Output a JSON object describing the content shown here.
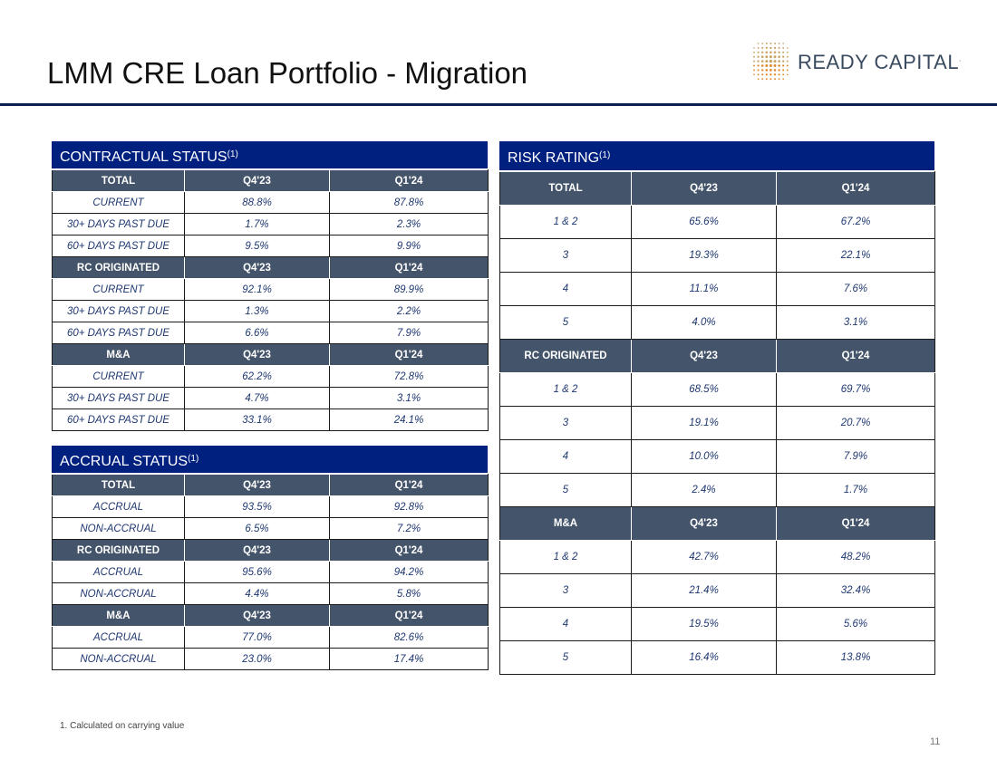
{
  "title": "LMM CRE Loan Portfolio - Migration",
  "logo": {
    "text": "READY CAPITAL",
    "mark": "."
  },
  "cols": [
    "Q4'23",
    "Q1'24"
  ],
  "contractual": {
    "title": "CONTRACTUAL STATUS",
    "sup": "(1)",
    "groups": [
      {
        "label": "TOTAL",
        "rows": [
          {
            "label": "CURRENT",
            "q4": "88.8%",
            "q1": "87.8%"
          },
          {
            "label": "30+ DAYS PAST DUE",
            "q4": "1.7%",
            "q1": "2.3%"
          },
          {
            "label": "60+ DAYS PAST DUE",
            "q4": "9.5%",
            "q1": "9.9%"
          }
        ]
      },
      {
        "label": "RC ORIGINATED",
        "rows": [
          {
            "label": "CURRENT",
            "q4": "92.1%",
            "q1": "89.9%"
          },
          {
            "label": "30+ DAYS PAST DUE",
            "q4": "1.3%",
            "q1": "2.2%"
          },
          {
            "label": "60+ DAYS PAST DUE",
            "q4": "6.6%",
            "q1": "7.9%"
          }
        ]
      },
      {
        "label": "M&A",
        "rows": [
          {
            "label": "CURRENT",
            "q4": "62.2%",
            "q1": "72.8%"
          },
          {
            "label": "30+ DAYS PAST DUE",
            "q4": "4.7%",
            "q1": "3.1%"
          },
          {
            "label": "60+ DAYS PAST DUE",
            "q4": "33.1%",
            "q1": "24.1%"
          }
        ]
      }
    ]
  },
  "accrual": {
    "title": "ACCRUAL STATUS",
    "sup": "(1)",
    "groups": [
      {
        "label": "TOTAL",
        "rows": [
          {
            "label": "ACCRUAL",
            "q4": "93.5%",
            "q1": "92.8%"
          },
          {
            "label": "NON-ACCRUAL",
            "q4": "6.5%",
            "q1": "7.2%"
          }
        ]
      },
      {
        "label": "RC ORIGINATED",
        "rows": [
          {
            "label": "ACCRUAL",
            "q4": "95.6%",
            "q1": "94.2%"
          },
          {
            "label": "NON-ACCRUAL",
            "q4": "4.4%",
            "q1": "5.8%"
          }
        ]
      },
      {
        "label": "M&A",
        "rows": [
          {
            "label": "ACCRUAL",
            "q4": "77.0%",
            "q1": "82.6%"
          },
          {
            "label": "NON-ACCRUAL",
            "q4": "23.0%",
            "q1": "17.4%"
          }
        ]
      }
    ]
  },
  "risk": {
    "title": "RISK RATING",
    "sup": "(1)",
    "groups": [
      {
        "label": "TOTAL",
        "rows": [
          {
            "label": "1 & 2",
            "q4": "65.6%",
            "q1": "67.2%"
          },
          {
            "label": "3",
            "q4": "19.3%",
            "q1": "22.1%"
          },
          {
            "label": "4",
            "q4": "11.1%",
            "q1": "7.6%"
          },
          {
            "label": "5",
            "q4": "4.0%",
            "q1": "3.1%"
          }
        ]
      },
      {
        "label": "RC ORIGINATED",
        "rows": [
          {
            "label": "1 & 2",
            "q4": "68.5%",
            "q1": "69.7%"
          },
          {
            "label": "3",
            "q4": "19.1%",
            "q1": "20.7%"
          },
          {
            "label": "4",
            "q4": "10.0%",
            "q1": "7.9%"
          },
          {
            "label": "5",
            "q4": "2.4%",
            "q1": "1.7%"
          }
        ]
      },
      {
        "label": "M&A",
        "rows": [
          {
            "label": "1 & 2",
            "q4": "42.7%",
            "q1": "48.2%"
          },
          {
            "label": "3",
            "q4": "21.4%",
            "q1": "32.4%"
          },
          {
            "label": "4",
            "q4": "19.5%",
            "q1": "5.6%"
          },
          {
            "label": "5",
            "q4": "16.4%",
            "q1": "13.8%"
          }
        ]
      }
    ]
  },
  "footnote": "1. Calculated on carrying value",
  "page_number": "11"
}
